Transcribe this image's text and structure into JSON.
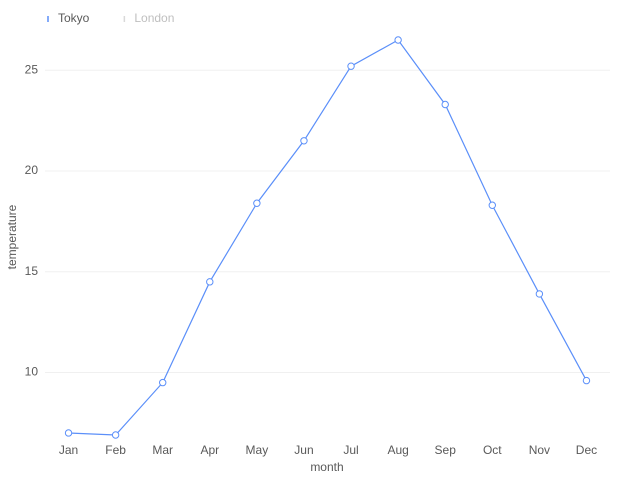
{
  "chart_data": {
    "type": "line",
    "x_label": "month",
    "y_label": "temperature",
    "categories": [
      "Jan",
      "Feb",
      "Mar",
      "Apr",
      "May",
      "Jun",
      "Jul",
      "Aug",
      "Sep",
      "Oct",
      "Nov",
      "Dec"
    ],
    "series": [
      {
        "name": "Tokyo",
        "color": "#5b8ff9",
        "values": [
          7.0,
          6.9,
          9.5,
          14.5,
          18.4,
          21.5,
          25.2,
          26.5,
          23.3,
          18.3,
          13.9,
          9.6
        ]
      },
      {
        "name": "London",
        "color": "#bfbfbf",
        "hidden": true
      }
    ],
    "ylim": [
      6.9,
      26.5
    ],
    "yticks": [
      10,
      15,
      20,
      25
    ],
    "grid": true,
    "legend": "top-left"
  }
}
